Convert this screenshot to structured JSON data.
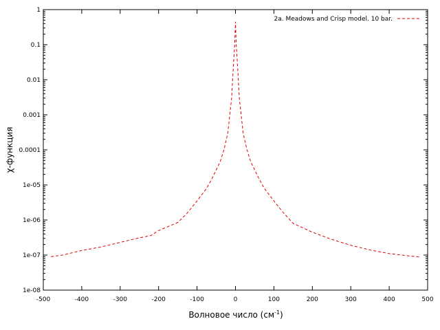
{
  "chart_data": {
    "type": "line",
    "title": "",
    "xlabel": "Волновое число (см",
    "xlabel_sup": "-1",
    "xlabel_end": ")",
    "ylabel": "χ-функция",
    "xlim": [
      -500,
      500
    ],
    "ylim": [
      1e-08,
      1
    ],
    "yscale": "log",
    "grid": false,
    "legend_position": "top-right",
    "x_ticks": [
      -500,
      -400,
      -300,
      -200,
      -100,
      0,
      100,
      200,
      300,
      400,
      500
    ],
    "x_tick_labels": [
      "-500",
      "-400",
      "-300",
      "-200",
      "-100",
      "0",
      "100",
      "200",
      "300",
      "400",
      "500"
    ],
    "y_ticks": [
      1e-08,
      1e-07,
      1e-06,
      1e-05,
      0.0001,
      0.001,
      0.01,
      0.1,
      1
    ],
    "y_tick_labels": [
      "1e-08",
      "1e-07",
      "1e-06",
      "1e-05",
      "0.0001",
      "0.001",
      "0.01",
      "0.1",
      "1"
    ],
    "series": [
      {
        "name": "2a. Meadows and Crisp model. 10 bar.",
        "color": "#e00000",
        "dash": "dashed",
        "x": [
          -480,
          -450,
          -400,
          -350,
          -300,
          -250,
          -220,
          -200,
          -150,
          -125,
          -100,
          -75,
          -60,
          -40,
          -30,
          -20,
          -10,
          -5,
          -2,
          0,
          2,
          5,
          10,
          20,
          30,
          40,
          60,
          75,
          100,
          125,
          150,
          200,
          250,
          300,
          350,
          400,
          450,
          480
        ],
        "y": [
          9e-08,
          1e-07,
          1.35e-07,
          1.7e-07,
          2.3e-07,
          3.1e-07,
          3.6e-07,
          5e-07,
          8.5e-07,
          1.6e-06,
          3.5e-06,
          8e-06,
          1.6e-05,
          4.5e-05,
          0.0001,
          0.0003,
          0.003,
          0.03,
          0.1,
          0.45,
          0.1,
          0.03,
          0.003,
          0.0003,
          0.0001,
          4.5e-05,
          1.6e-05,
          8e-06,
          3.5e-06,
          1.6e-06,
          8e-07,
          4.5e-07,
          2.8e-07,
          1.9e-07,
          1.4e-07,
          1.1e-07,
          9.5e-08,
          8.8e-08
        ]
      }
    ]
  }
}
